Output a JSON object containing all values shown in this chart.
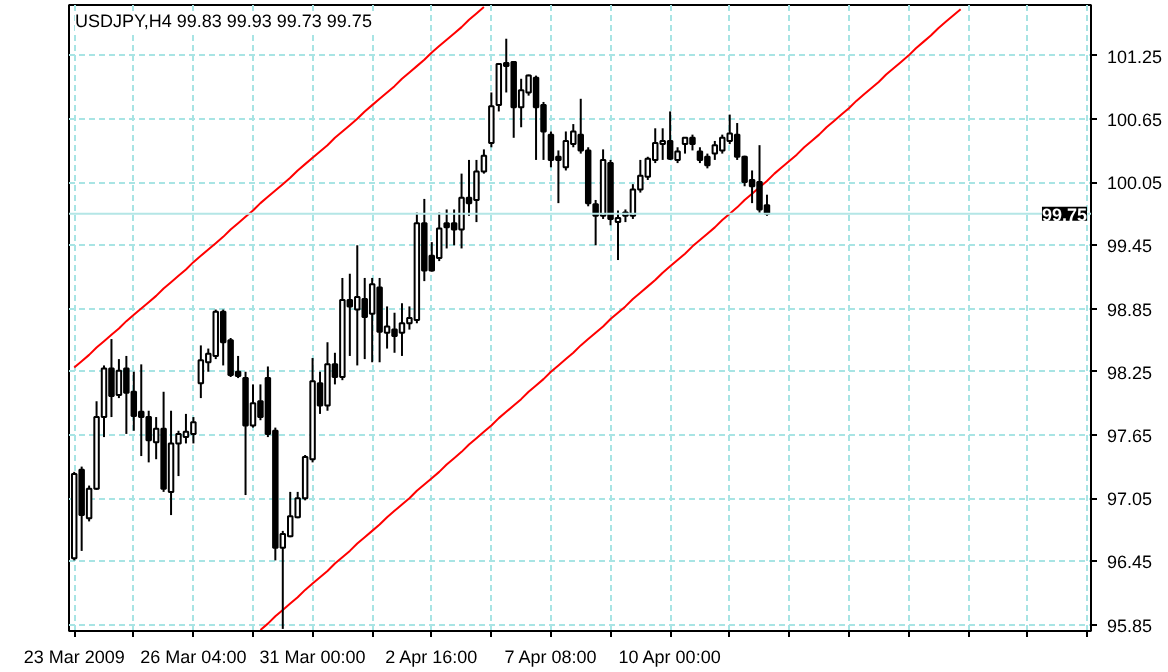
{
  "chart_data": {
    "type": "candlestick",
    "title": "USDJPY,H4  99.83 99.93 99.73 99.75",
    "categories": [
      "23 Mar 2009",
      null,
      null,
      null,
      null,
      null,
      null,
      null,
      null,
      null,
      null,
      null,
      null,
      null,
      null,
      null,
      "26 Mar 04:00",
      null,
      null,
      null,
      null,
      null,
      null,
      null,
      null,
      null,
      null,
      null,
      null,
      null,
      null,
      null,
      "31 Mar 00:00",
      null,
      null,
      null,
      null,
      null,
      null,
      null,
      null,
      null,
      null,
      null,
      null,
      null,
      null,
      null,
      "2 Apr 16:00",
      null,
      null,
      null,
      null,
      null,
      null,
      null,
      null,
      null,
      null,
      null,
      null,
      null,
      null,
      null,
      "7 Apr 08:00",
      null,
      null,
      null,
      null,
      null,
      null,
      null,
      null,
      null,
      null,
      null,
      null,
      null,
      null,
      null,
      "10 Apr 00:00",
      null,
      null,
      null,
      null,
      null,
      null,
      null,
      null,
      null,
      null,
      null,
      null,
      null,
      null,
      null,
      null,
      null,
      null,
      null,
      null,
      null,
      null,
      null,
      null,
      null,
      null,
      null,
      null,
      null,
      null,
      null,
      null,
      null,
      null,
      null,
      null,
      null,
      null,
      null,
      null,
      null,
      null,
      null,
      null,
      null,
      null,
      null,
      null,
      null,
      null,
      null,
      null,
      null,
      null,
      null,
      null
    ],
    "ohlc": [
      [
        96.48,
        97.3,
        96.46,
        97.28
      ],
      [
        97.32,
        97.35,
        96.55,
        96.89
      ],
      [
        96.86,
        97.17,
        96.83,
        97.14
      ],
      [
        97.14,
        97.97,
        97.13,
        97.82
      ],
      [
        97.82,
        98.31,
        97.63,
        98.28
      ],
      [
        98.28,
        98.56,
        97.82,
        98.02
      ],
      [
        98.03,
        98.37,
        98.0,
        98.26
      ],
      [
        98.28,
        98.4,
        97.66,
        98.05
      ],
      [
        98.06,
        98.25,
        97.69,
        97.83
      ],
      [
        97.87,
        98.32,
        97.45,
        97.82
      ],
      [
        97.82,
        97.88,
        97.39,
        97.6
      ],
      [
        97.58,
        97.82,
        97.42,
        97.71
      ],
      [
        97.71,
        98.06,
        97.11,
        97.14
      ],
      [
        97.11,
        97.88,
        96.89,
        97.57
      ],
      [
        97.57,
        97.69,
        97.26,
        97.66
      ],
      [
        97.63,
        97.85,
        97.57,
        97.68
      ],
      [
        97.66,
        97.82,
        97.57,
        97.77
      ],
      [
        98.14,
        98.5,
        98.0,
        98.36
      ],
      [
        98.34,
        98.47,
        98.25,
        98.42
      ],
      [
        98.4,
        98.84,
        98.37,
        98.82
      ],
      [
        98.82,
        98.84,
        98.31,
        98.53
      ],
      [
        98.55,
        98.57,
        98.2,
        98.22
      ],
      [
        98.25,
        98.4,
        98.19,
        98.21
      ],
      [
        98.19,
        98.25,
        97.08,
        97.74
      ],
      [
        97.74,
        98.13,
        97.72,
        97.95
      ],
      [
        97.97,
        98.13,
        97.79,
        97.82
      ],
      [
        98.19,
        98.3,
        97.63,
        97.66
      ],
      [
        97.69,
        97.72,
        96.46,
        96.58
      ],
      [
        96.58,
        96.74,
        95.81,
        96.71
      ],
      [
        96.69,
        97.11,
        96.68,
        96.88
      ],
      [
        96.87,
        97.11,
        96.86,
        97.05
      ],
      [
        97.05,
        97.46,
        97.03,
        97.44
      ],
      [
        97.42,
        98.38,
        97.39,
        98.16
      ],
      [
        98.14,
        98.25,
        97.85,
        97.93
      ],
      [
        97.93,
        98.53,
        97.88,
        98.32
      ],
      [
        98.32,
        98.43,
        98.13,
        98.2
      ],
      [
        98.2,
        99.14,
        98.17,
        98.93
      ],
      [
        98.93,
        99.18,
        98.4,
        98.87
      ],
      [
        98.84,
        99.45,
        98.31,
        98.96
      ],
      [
        98.94,
        99.14,
        98.37,
        98.77
      ],
      [
        98.8,
        99.14,
        98.34,
        99.08
      ],
      [
        99.05,
        99.14,
        98.34,
        98.63
      ],
      [
        98.62,
        98.87,
        98.47,
        98.68
      ],
      [
        98.65,
        98.81,
        98.43,
        98.59
      ],
      [
        98.62,
        98.9,
        98.4,
        98.71
      ],
      [
        98.71,
        98.87,
        98.65,
        98.76
      ],
      [
        98.74,
        99.76,
        98.71,
        99.66
      ],
      [
        99.66,
        99.89,
        99.11,
        99.21
      ],
      [
        99.35,
        99.48,
        99.2,
        99.21
      ],
      [
        99.33,
        99.76,
        99.3,
        99.61
      ],
      [
        99.66,
        99.79,
        99.42,
        99.62
      ],
      [
        99.66,
        99.79,
        99.45,
        99.6
      ],
      [
        99.6,
        100.13,
        99.42,
        99.9
      ],
      [
        99.9,
        100.26,
        99.73,
        99.85
      ],
      [
        99.88,
        100.26,
        99.67,
        100.15
      ],
      [
        100.15,
        100.36,
        100.13,
        100.3
      ],
      [
        100.42,
        100.9,
        100.38,
        100.77
      ],
      [
        100.78,
        101.18,
        100.72,
        101.17
      ],
      [
        101.18,
        101.41,
        100.9,
        101.15
      ],
      [
        101.19,
        101.19,
        100.47,
        100.76
      ],
      [
        100.76,
        101.03,
        100.57,
        100.92
      ],
      [
        100.9,
        101.07,
        100.87,
        101.06
      ],
      [
        101.04,
        101.06,
        100.26,
        100.76
      ],
      [
        100.78,
        100.81,
        100.26,
        100.53
      ],
      [
        100.5,
        100.53,
        100.19,
        100.26
      ],
      [
        100.29,
        100.35,
        99.85,
        100.26
      ],
      [
        100.19,
        100.53,
        100.16,
        100.44
      ],
      [
        100.41,
        100.6,
        100.38,
        100.53
      ],
      [
        100.5,
        100.84,
        100.32,
        100.35
      ],
      [
        100.35,
        100.38,
        99.82,
        99.85
      ],
      [
        99.84,
        99.88,
        99.45,
        99.73
      ],
      [
        99.73,
        100.36,
        99.7,
        100.26
      ],
      [
        100.23,
        100.26,
        99.64,
        99.7
      ],
      [
        99.67,
        99.78,
        99.31,
        99.71
      ],
      [
        99.73,
        99.79,
        99.67,
        99.76
      ],
      [
        99.73,
        100.03,
        99.7,
        99.98
      ],
      [
        99.98,
        100.26,
        99.95,
        100.11
      ],
      [
        100.1,
        100.29,
        100.07,
        100.27
      ],
      [
        100.26,
        100.56,
        100.23,
        100.42
      ],
      [
        100.41,
        100.56,
        100.26,
        100.44
      ],
      [
        100.44,
        100.72,
        100.26,
        100.27
      ],
      [
        100.26,
        100.38,
        100.23,
        100.34
      ],
      [
        100.41,
        100.47,
        100.32,
        100.47
      ],
      [
        100.47,
        100.5,
        100.35,
        100.41
      ],
      [
        100.34,
        100.38,
        100.23,
        100.26
      ],
      [
        100.29,
        100.32,
        100.18,
        100.21
      ],
      [
        100.32,
        100.44,
        100.26,
        100.4
      ],
      [
        100.35,
        100.5,
        100.32,
        100.47
      ],
      [
        100.44,
        100.69,
        100.41,
        100.51
      ],
      [
        100.5,
        100.61,
        100.26,
        100.29
      ],
      [
        100.29,
        100.3,
        100.01,
        100.05
      ],
      [
        100.07,
        100.16,
        99.85,
        100.01
      ],
      [
        100.05,
        100.4,
        99.76,
        99.79
      ],
      [
        99.83,
        99.93,
        99.73,
        99.75
      ],
      null,
      null,
      null,
      null,
      null,
      null,
      null,
      null,
      null,
      null,
      null,
      null,
      null,
      null,
      null,
      null,
      null,
      null,
      null,
      null,
      null,
      null,
      null,
      null,
      null,
      null,
      null,
      null,
      null,
      null,
      null,
      null,
      null,
      null,
      null,
      null,
      null,
      null,
      null,
      null,
      null,
      null,
      null
    ],
    "series": [
      {
        "type": "line",
        "color": "#ff0000",
        "values": [
          98.29,
          98.35,
          98.41,
          98.48,
          98.54,
          98.6,
          98.66,
          98.73,
          98.79,
          98.85,
          98.91,
          98.97,
          99.04,
          99.1,
          99.16,
          99.22,
          99.29,
          99.35,
          99.41,
          99.47,
          99.53,
          99.6,
          99.66,
          99.72,
          99.78,
          99.85,
          99.91,
          99.97,
          100.03,
          100.09,
          100.16,
          100.22,
          100.28,
          100.34,
          100.4,
          100.47,
          100.53,
          100.59,
          100.65,
          100.72,
          100.78,
          100.84,
          100.9,
          100.96,
          101.03,
          101.09,
          101.15,
          101.21,
          101.28,
          101.34,
          101.4,
          101.46,
          101.52,
          101.59,
          101.65,
          101.71,
          null,
          null,
          null,
          null,
          null,
          null,
          null,
          null,
          null,
          null,
          null,
          null,
          null,
          null,
          null,
          null,
          null,
          null,
          null,
          null,
          null,
          null,
          null,
          null,
          null,
          null,
          null,
          null,
          null,
          null,
          null,
          null,
          null,
          null,
          null,
          null,
          null,
          null,
          null,
          null,
          null,
          null,
          null,
          null,
          null,
          null,
          null,
          null,
          null,
          null,
          null,
          null,
          null,
          null,
          null,
          null,
          null,
          null,
          null,
          null,
          null,
          null,
          null,
          null,
          null,
          null,
          null,
          null,
          null,
          null,
          null,
          null,
          null,
          null,
          null,
          null,
          null,
          null,
          null,
          null,
          null
        ]
      },
      {
        "type": "line",
        "color": "#ff0000",
        "values": [
          null,
          null,
          null,
          null,
          null,
          null,
          null,
          null,
          null,
          null,
          null,
          null,
          null,
          null,
          null,
          null,
          null,
          null,
          null,
          null,
          null,
          null,
          null,
          null,
          null,
          95.8,
          95.86,
          95.93,
          95.99,
          96.05,
          96.11,
          96.18,
          96.24,
          96.3,
          96.36,
          96.43,
          96.49,
          96.55,
          96.62,
          96.68,
          96.74,
          96.8,
          96.87,
          96.93,
          96.99,
          97.05,
          97.12,
          97.18,
          97.24,
          97.3,
          97.37,
          97.43,
          97.49,
          97.56,
          97.62,
          97.68,
          97.74,
          97.81,
          97.87,
          97.93,
          97.99,
          98.06,
          98.12,
          98.18,
          98.25,
          98.31,
          98.37,
          98.43,
          98.5,
          98.56,
          98.62,
          98.68,
          98.75,
          98.81,
          98.87,
          98.94,
          99.0,
          99.06,
          99.12,
          99.19,
          99.25,
          99.31,
          99.37,
          99.44,
          99.5,
          99.56,
          99.62,
          99.69,
          99.75,
          99.81,
          99.88,
          99.94,
          100.0,
          100.06,
          100.13,
          100.19,
          100.25,
          100.31,
          100.38,
          100.44,
          100.5,
          100.57,
          100.63,
          100.69,
          100.75,
          100.82,
          100.88,
          100.94,
          101.0,
          101.07,
          101.13,
          101.19,
          101.25,
          101.32,
          101.38,
          101.44,
          101.51,
          101.57,
          101.63,
          101.69,
          null,
          null,
          null,
          null,
          null,
          null,
          null,
          null,
          null,
          null,
          null,
          null,
          null,
          null,
          null,
          null,
          null
        ]
      }
    ],
    "ylim": [
      95.79,
      101.73
    ],
    "yticks": [
      95.85,
      96.45,
      97.05,
      97.65,
      98.25,
      98.85,
      99.45,
      100.05,
      100.65,
      101.25
    ],
    "ref_lines": [
      {
        "axis": "y",
        "value": 99.75,
        "label": "99.75",
        "color": "#b4e6e6"
      }
    ],
    "grid": true
  }
}
